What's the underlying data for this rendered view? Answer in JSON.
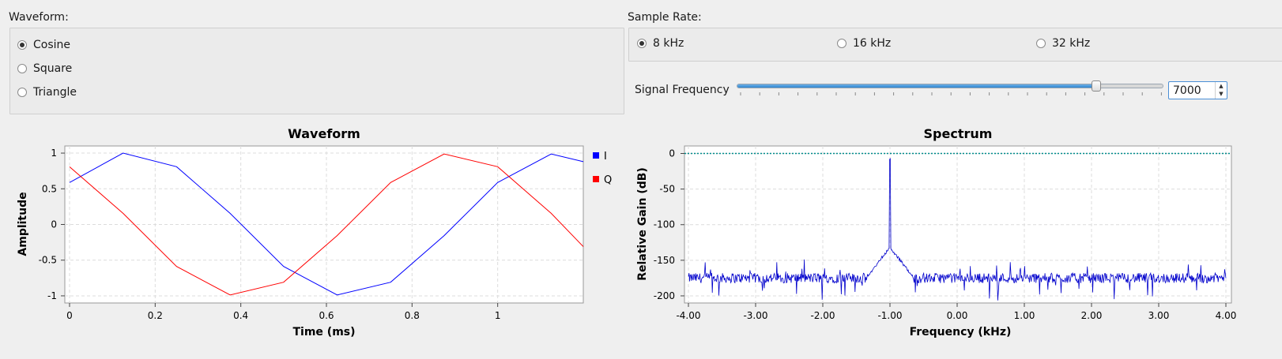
{
  "waveform_group": {
    "title": "Waveform:",
    "options": [
      {
        "label": "Cosine",
        "checked": true
      },
      {
        "label": "Square",
        "checked": false
      },
      {
        "label": "Triangle",
        "checked": false
      }
    ]
  },
  "sample_rate_group": {
    "title": "Sample Rate:",
    "options": [
      {
        "label": "8 kHz",
        "checked": true
      },
      {
        "label": "16 kHz",
        "checked": false
      },
      {
        "label": "32 kHz",
        "checked": false
      }
    ]
  },
  "signal_frequency": {
    "label": "Signal Frequency",
    "value": "7000",
    "slider_fraction": 0.843
  },
  "chart_data": [
    {
      "type": "line",
      "title": "Waveform",
      "xlabel": "Time (ms)",
      "ylabel": "Amplitude",
      "xlim": [
        0,
        1.2
      ],
      "ylim": [
        -1.1,
        1.1
      ],
      "xticks": [
        0,
        0.2,
        0.4,
        0.6,
        0.8,
        1
      ],
      "xtick_labels": [
        "0",
        "0.2",
        "0.4",
        "0.6",
        "0.8",
        "1"
      ],
      "yticks": [
        1,
        0.5,
        0,
        -0.5,
        -1
      ],
      "ytick_labels": [
        "1",
        "0.5",
        "0",
        "-0.5",
        "-1"
      ],
      "legend": "right",
      "grid": true,
      "series": [
        {
          "name": "I",
          "color": "#0000ff",
          "x": [
            0,
            0.125,
            0.25,
            0.375,
            0.5,
            0.625,
            0.75,
            0.875,
            1.0,
            1.125,
            1.2
          ],
          "y": [
            0.588,
            1.0,
            0.809,
            0.156,
            -0.588,
            -0.988,
            -0.809,
            -0.156,
            0.588,
            0.988,
            0.88
          ]
        },
        {
          "name": "Q",
          "color": "#ff0000",
          "x": [
            0,
            0.125,
            0.25,
            0.375,
            0.5,
            0.625,
            0.75,
            0.875,
            1.0,
            1.125,
            1.2
          ],
          "y": [
            0.809,
            0.156,
            -0.588,
            -0.988,
            -0.809,
            -0.156,
            0.588,
            0.988,
            0.809,
            0.156,
            -0.31
          ]
        }
      ]
    },
    {
      "type": "line",
      "title": "Spectrum",
      "xlabel": "Frequency (kHz)",
      "ylabel": "Relative Gain (dB)",
      "xlim": [
        -4.0,
        4.0
      ],
      "ylim": [
        -210,
        5
      ],
      "xticks": [
        -4,
        -3,
        -2,
        -1,
        0,
        1,
        2,
        3,
        4
      ],
      "xtick_labels": [
        "-4.00",
        "-3.00",
        "-2.00",
        "-1.00",
        "0.00",
        "1.00",
        "2.00",
        "3.00",
        "4.00"
      ],
      "yticks": [
        0,
        -50,
        -100,
        -150,
        -200
      ],
      "ytick_labels": [
        "0",
        "-50",
        "-100",
        "-150",
        "-200"
      ],
      "grid": true,
      "reference_line_db": 0,
      "series": [
        {
          "name": "spectrum",
          "color": "#0000cc",
          "noise_floor_db": -175,
          "peak_frequency_khz": -1.0,
          "peak_db": -10
        }
      ]
    }
  ],
  "colors": {
    "accent": "#2f87d2",
    "series_i": "#0000ff",
    "series_q": "#ff0000",
    "spectrum": "#0000cc",
    "reference": "#008b8b"
  }
}
